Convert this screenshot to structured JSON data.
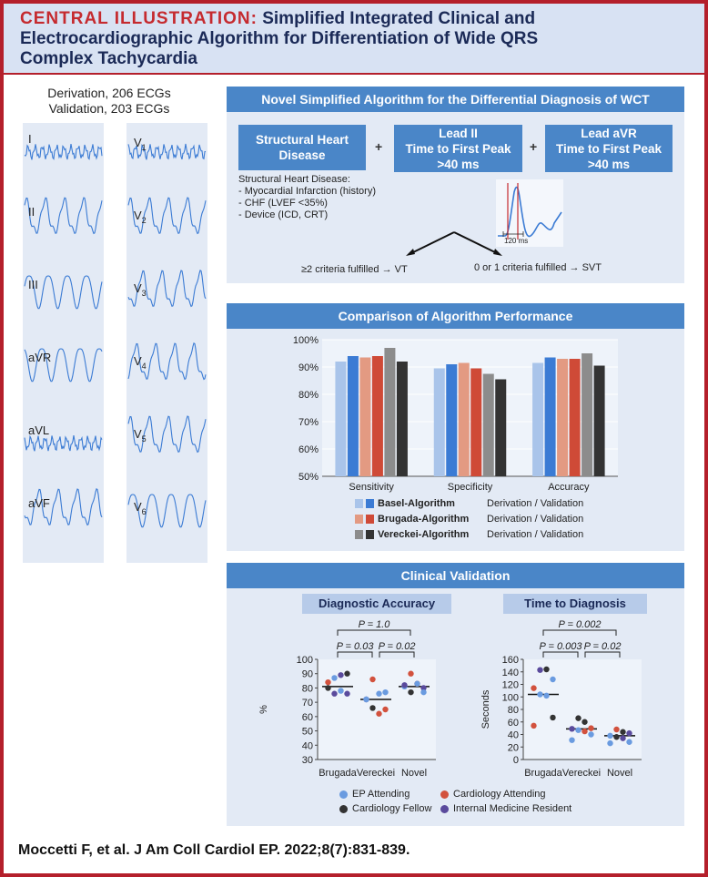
{
  "header": {
    "label": "CENTRAL ILLUSTRATION:",
    "title_lines": [
      "Simplified Integrated Clinical and",
      "Electrocardiographic Algorithm for Differentiation of Wide QRS",
      "Complex Tachycardia"
    ]
  },
  "ecg": {
    "derivation": "Derivation, 206 ECGs",
    "validation": "Validation, 203 ECGs",
    "left_leads": [
      "I",
      "II",
      "III",
      "aVR",
      "aVL",
      "aVF"
    ],
    "right_leads": [
      {
        "main": "V",
        "sub": "1"
      },
      {
        "main": "V",
        "sub": "2"
      },
      {
        "main": "V",
        "sub": "3"
      },
      {
        "main": "V",
        "sub": "4"
      },
      {
        "main": "V",
        "sub": "5"
      },
      {
        "main": "V",
        "sub": "6"
      }
    ]
  },
  "algorithm": {
    "title": "Novel Simplified Algorithm for the Differential Diagnosis of WCT",
    "box1": [
      "Structural Heart",
      "Disease"
    ],
    "box2": [
      "Lead II",
      "Time to First Peak",
      ">40 ms"
    ],
    "box3": [
      "Lead aVR",
      "Time to First Peak",
      ">40 ms"
    ],
    "plus": "+",
    "shd_title": "Structural Heart Disease:",
    "shd_items": [
      "- Myocardial Infarction (history)",
      "- CHF (LVEF <35%)",
      "- Device (ICD, CRT)"
    ],
    "inset_label": "120 ms",
    "outcome_vt": "≥2 criteria fulfilled → VT",
    "outcome_svt": "0 or 1 criteria fulfilled → SVT"
  },
  "performance": {
    "title": "Comparison of Algorithm Performance",
    "legend": [
      {
        "name": "Basel-Algorithm",
        "note": "Derivation / Validation",
        "colors": [
          "#a9c4ea",
          "#3b7bd4"
        ]
      },
      {
        "name": "Brugada-Algorithm",
        "note": "Derivation / Validation",
        "colors": [
          "#e39a82",
          "#cf4a37"
        ]
      },
      {
        "name": "Vereckei-Algorithm",
        "note": "Derivation / Validation",
        "colors": [
          "#8c8c8c",
          "#333333"
        ]
      }
    ]
  },
  "validation": {
    "title": "Clinical Validation",
    "accuracy_title": "Diagnostic Accuracy",
    "time_title": "Time to Diagnosis",
    "legend": [
      {
        "name": "EP Attending",
        "color": "#6a9be0"
      },
      {
        "name": "Cardiology Attending",
        "color": "#d2513d"
      },
      {
        "name": "Cardiology Fellow",
        "color": "#333333"
      },
      {
        "name": "Internal Medicine Resident",
        "color": "#5a4a9c"
      }
    ]
  },
  "chart_data": [
    {
      "type": "bar",
      "categories": [
        "Sensitivity",
        "Specificity",
        "Accuracy"
      ],
      "ylim": [
        50,
        100
      ],
      "yticks": [
        "100%",
        "90%",
        "80%",
        "70%",
        "60%",
        "50%"
      ],
      "series": [
        {
          "name": "Basel-Algorithm Derivation",
          "color": "#a9c4ea",
          "values": [
            92,
            89.5,
            91.5
          ]
        },
        {
          "name": "Basel-Algorithm Validation",
          "color": "#3b7bd4",
          "values": [
            94,
            91,
            93.5
          ]
        },
        {
          "name": "Brugada-Algorithm Derivation",
          "color": "#e39a82",
          "values": [
            93.5,
            91.5,
            93
          ]
        },
        {
          "name": "Brugada-Algorithm Validation",
          "color": "#cf4a37",
          "values": [
            94,
            89.5,
            93
          ]
        },
        {
          "name": "Vereckei-Algorithm Derivation",
          "color": "#8c8c8c",
          "values": [
            97,
            87.5,
            95
          ]
        },
        {
          "name": "Vereckei-Algorithm Validation",
          "color": "#333333",
          "values": [
            92,
            85.5,
            90.5
          ]
        }
      ]
    },
    {
      "type": "scatter",
      "categories": [
        "Brugada",
        "Vereckei",
        "Novel"
      ],
      "ylabel": "%",
      "ylim": [
        30,
        100
      ],
      "yticks": [
        "100",
        "90",
        "80",
        "70",
        "60",
        "50",
        "40",
        "30"
      ],
      "medians": [
        81,
        72,
        81
      ],
      "p_values": [
        "P = 0.03",
        "P = 0.02",
        "P = 1.0"
      ],
      "points": [
        {
          "x": "Brugada",
          "y": 87,
          "group": 0
        },
        {
          "x": "Brugada",
          "y": 89,
          "group": 3
        },
        {
          "x": "Brugada",
          "y": 90,
          "group": 2
        },
        {
          "x": "Brugada",
          "y": 84,
          "group": 1
        },
        {
          "x": "Brugada",
          "y": 76,
          "group": 3
        },
        {
          "x": "Brugada",
          "y": 78,
          "group": 0
        },
        {
          "x": "Brugada",
          "y": 76,
          "group": 3
        },
        {
          "x": "Brugada",
          "y": 80,
          "group": 2
        },
        {
          "x": "Vereckei",
          "y": 86,
          "group": 1
        },
        {
          "x": "Vereckei",
          "y": 76,
          "group": 0
        },
        {
          "x": "Vereckei",
          "y": 77,
          "group": 0
        },
        {
          "x": "Vereckei",
          "y": 72,
          "group": 3
        },
        {
          "x": "Vereckei",
          "y": 66,
          "group": 2
        },
        {
          "x": "Vereckei",
          "y": 62,
          "group": 1
        },
        {
          "x": "Vereckei",
          "y": 65,
          "group": 1
        },
        {
          "x": "Vereckei",
          "y": 72,
          "group": 0
        },
        {
          "x": "Novel",
          "y": 90,
          "group": 1
        },
        {
          "x": "Novel",
          "y": 83,
          "group": 1
        },
        {
          "x": "Novel",
          "y": 80,
          "group": 3
        },
        {
          "x": "Novel",
          "y": 81,
          "group": 0
        },
        {
          "x": "Novel",
          "y": 77,
          "group": 2
        },
        {
          "x": "Novel",
          "y": 83,
          "group": 0
        },
        {
          "x": "Novel",
          "y": 77,
          "group": 0
        },
        {
          "x": "Novel",
          "y": 82,
          "group": 3
        }
      ]
    },
    {
      "type": "scatter",
      "categories": [
        "Brugada",
        "Vereckei",
        "Novel"
      ],
      "ylabel": "Seconds",
      "ylim": [
        0,
        160
      ],
      "yticks": [
        "160",
        "140",
        "120",
        "100",
        "80",
        "60",
        "40",
        "20",
        "0"
      ],
      "medians": [
        104,
        49,
        38
      ],
      "p_values": [
        "P = 0.003",
        "P = 0.02",
        "P = 0.002"
      ],
      "points": [
        {
          "x": "Brugada",
          "y": 143,
          "group": 3
        },
        {
          "x": "Brugada",
          "y": 144,
          "group": 2
        },
        {
          "x": "Brugada",
          "y": 128,
          "group": 0
        },
        {
          "x": "Brugada",
          "y": 114,
          "group": 1
        },
        {
          "x": "Brugada",
          "y": 104,
          "group": 0
        },
        {
          "x": "Brugada",
          "y": 102,
          "group": 0
        },
        {
          "x": "Brugada",
          "y": 67,
          "group": 2
        },
        {
          "x": "Brugada",
          "y": 54,
          "group": 1
        },
        {
          "x": "Vereckei",
          "y": 66,
          "group": 2
        },
        {
          "x": "Vereckei",
          "y": 60,
          "group": 2
        },
        {
          "x": "Vereckei",
          "y": 50,
          "group": 1
        },
        {
          "x": "Vereckei",
          "y": 49,
          "group": 3
        },
        {
          "x": "Vereckei",
          "y": 47,
          "group": 0
        },
        {
          "x": "Vereckei",
          "y": 45,
          "group": 1
        },
        {
          "x": "Vereckei",
          "y": 40,
          "group": 0
        },
        {
          "x": "Vereckei",
          "y": 31,
          "group": 0
        },
        {
          "x": "Novel",
          "y": 48,
          "group": 1
        },
        {
          "x": "Novel",
          "y": 44,
          "group": 2
        },
        {
          "x": "Novel",
          "y": 42,
          "group": 3
        },
        {
          "x": "Novel",
          "y": 38,
          "group": 0
        },
        {
          "x": "Novel",
          "y": 36,
          "group": 2
        },
        {
          "x": "Novel",
          "y": 34,
          "group": 3
        },
        {
          "x": "Novel",
          "y": 28,
          "group": 0
        },
        {
          "x": "Novel",
          "y": 26,
          "group": 0
        }
      ]
    }
  ],
  "citation": "Moccetti F, et al. J Am Coll Cardiol EP. 2022;8(7):831-839."
}
